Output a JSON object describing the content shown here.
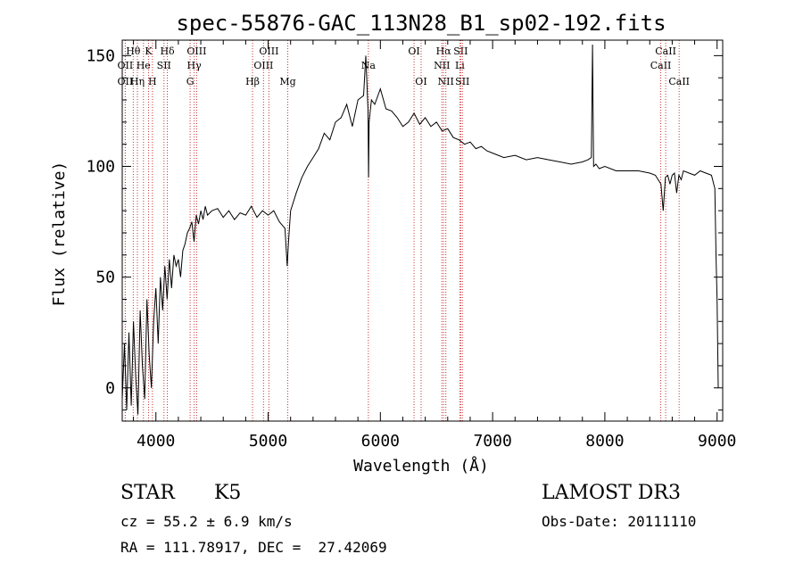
{
  "chart_data": {
    "type": "line",
    "title": "spec-55876-GAC_113N28_B1_sp02-192.fits",
    "xlabel": "Wavelength (Å)",
    "ylabel": "Flux (relative)",
    "xlim": [
      3700,
      9050
    ],
    "ylim": [
      -15,
      157
    ],
    "xticks": [
      4000,
      5000,
      6000,
      7000,
      8000,
      9000
    ],
    "yticks": [
      0,
      50,
      100,
      150
    ],
    "grid": false,
    "line_color": "#000000",
    "marker_line_color": "#cc3333",
    "series": [
      {
        "x": [
          3700,
          3720,
          3740,
          3760,
          3780,
          3800,
          3820,
          3840,
          3860,
          3880,
          3900,
          3920,
          3940,
          3960,
          3980,
          4000,
          4020,
          4040,
          4060,
          4080,
          4100,
          4120,
          4140,
          4160,
          4180,
          4200,
          4220,
          4240,
          4260,
          4280,
          4300,
          4320,
          4340,
          4360,
          4380,
          4400,
          4420,
          4440,
          4460,
          4480,
          4500,
          4550,
          4600,
          4650,
          4700,
          4750,
          4800,
          4850,
          4900,
          4950,
          5000,
          5050,
          5100,
          5150,
          5170,
          5180,
          5200,
          5250,
          5300,
          5350,
          5400,
          5450,
          5500,
          5550,
          5600,
          5650,
          5700,
          5750,
          5800,
          5850,
          5870,
          5890,
          5895,
          5900,
          5920,
          5950,
          6000,
          6050,
          6100,
          6150,
          6200,
          6250,
          6300,
          6350,
          6400,
          6450,
          6500,
          6550,
          6600,
          6650,
          6700,
          6750,
          6800,
          6850,
          6900,
          6950,
          7000,
          7100,
          7200,
          7300,
          7400,
          7500,
          7600,
          7700,
          7800,
          7850,
          7880,
          7890,
          7900,
          7920,
          7950,
          8000,
          8100,
          8200,
          8300,
          8400,
          8450,
          8500,
          8520,
          8540,
          8560,
          8580,
          8600,
          8620,
          8640,
          8660,
          8680,
          8700,
          8750,
          8800,
          8850,
          8900,
          8950,
          8980,
          8990,
          9000,
          9010
        ],
        "y": [
          -5,
          20,
          -10,
          25,
          -8,
          30,
          5,
          -12,
          35,
          10,
          -5,
          40,
          15,
          0,
          30,
          45,
          20,
          50,
          35,
          55,
          40,
          58,
          45,
          60,
          55,
          58,
          50,
          62,
          65,
          70,
          72,
          75,
          66,
          78,
          74,
          80,
          76,
          82,
          78,
          79,
          80,
          81,
          77,
          80,
          76,
          79,
          78,
          82,
          77,
          80,
          78,
          80,
          75,
          72,
          55,
          65,
          80,
          88,
          95,
          100,
          104,
          108,
          115,
          112,
          120,
          122,
          128,
          118,
          130,
          132,
          150,
          125,
          95,
          120,
          130,
          128,
          135,
          126,
          125,
          122,
          118,
          120,
          124,
          119,
          122,
          118,
          120,
          116,
          117,
          113,
          112,
          110,
          111,
          108,
          109,
          107,
          106,
          104,
          105,
          103,
          104,
          103,
          102,
          101,
          102,
          103,
          104,
          155,
          100,
          101,
          99,
          100,
          98,
          98,
          98,
          97,
          96,
          92,
          80,
          95,
          96,
          92,
          96,
          97,
          88,
          96,
          94,
          98,
          97,
          96,
          98,
          97,
          96,
          90,
          60,
          40,
          0
        ]
      }
    ],
    "line_markers": [
      {
        "label": "Hθ",
        "x": 3798,
        "row": 1
      },
      {
        "label": "OII",
        "x": 3727,
        "row": 2
      },
      {
        "label": "OII",
        "x": 3727,
        "row": 3
      },
      {
        "label": "He",
        "x": 3889,
        "row": 2
      },
      {
        "label": "Hη",
        "x": 3835,
        "row": 3
      },
      {
        "label": "K",
        "x": 3934,
        "row": 1
      },
      {
        "label": "H",
        "x": 3969,
        "row": 3
      },
      {
        "label": "SII",
        "x": 4072,
        "row": 2
      },
      {
        "label": "Hδ",
        "x": 4102,
        "row": 1
      },
      {
        "label": "OIII",
        "x": 4363,
        "row": 1
      },
      {
        "label": "Hγ",
        "x": 4341,
        "row": 2
      },
      {
        "label": "G",
        "x": 4305,
        "row": 3
      },
      {
        "label": "Hβ",
        "x": 4861,
        "row": 3
      },
      {
        "label": "OIII",
        "x": 4959,
        "row": 2
      },
      {
        "label": "OIII",
        "x": 5007,
        "row": 1
      },
      {
        "label": "Mg",
        "x": 5175,
        "row": 3
      },
      {
        "label": "Na",
        "x": 5893,
        "row": 2
      },
      {
        "label": "OI",
        "x": 6300,
        "row": 1
      },
      {
        "label": "OI",
        "x": 6363,
        "row": 3
      },
      {
        "label": "Hα",
        "x": 6563,
        "row": 1
      },
      {
        "label": "NII",
        "x": 6548,
        "row": 2
      },
      {
        "label": "NII",
        "x": 6583,
        "row": 3
      },
      {
        "label": "SII",
        "x": 6716,
        "row": 1
      },
      {
        "label": "Li",
        "x": 6708,
        "row": 2
      },
      {
        "label": "SII",
        "x": 6731,
        "row": 3
      },
      {
        "label": "CaII",
        "x": 8542,
        "row": 1
      },
      {
        "label": "CaII",
        "x": 8498,
        "row": 2
      },
      {
        "label": "CaII",
        "x": 8662,
        "row": 3
      }
    ]
  },
  "info": {
    "class_text": "STAR",
    "subclass_text": "K5",
    "survey_text": "LAMOST DR3",
    "cz_text": "cz = 55.2 ± 6.9 km/s",
    "obsdate_text": "Obs-Date: 20111110",
    "radec_text": "RA = 111.78917, DEC =  27.42069"
  }
}
